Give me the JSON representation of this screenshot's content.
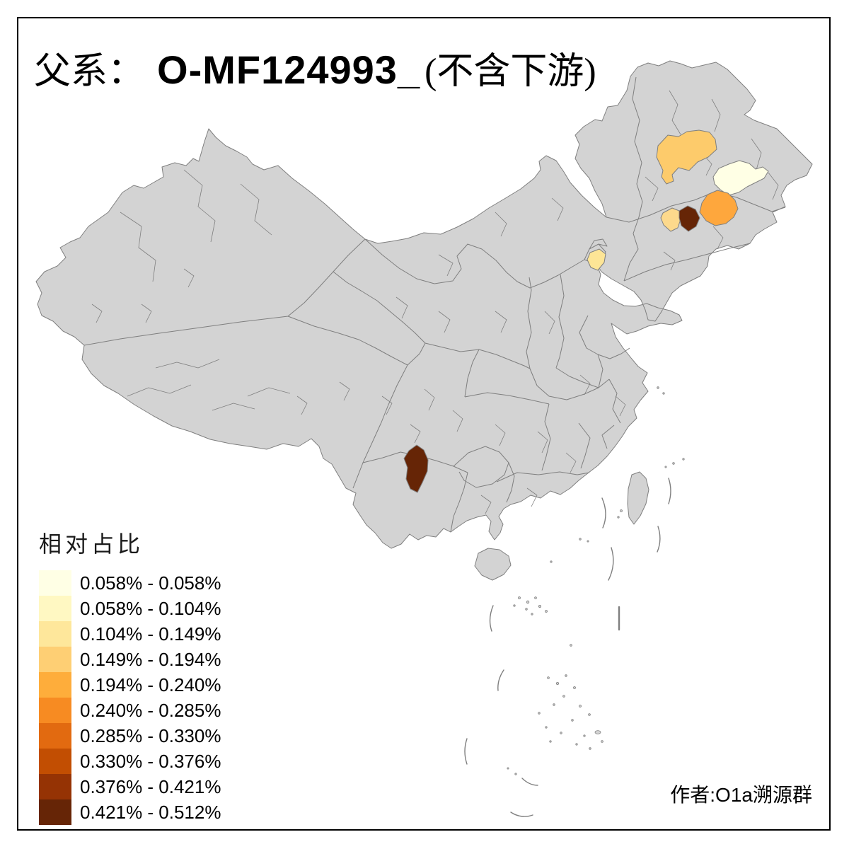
{
  "title": {
    "prefix": "父系：",
    "code": "O-MF124993_",
    "suffix": "(不含下游)"
  },
  "legend": {
    "title": "相对占比",
    "items": [
      {
        "color": "#FFFFE5",
        "label": "0.058% - 0.058%"
      },
      {
        "color": "#FFF8C2",
        "label": "0.058% - 0.104%"
      },
      {
        "color": "#FEE79B",
        "label": "0.104% - 0.149%"
      },
      {
        "color": "#FECF74",
        "label": "0.149% - 0.194%"
      },
      {
        "color": "#FEAD3B",
        "label": "0.194% - 0.240%"
      },
      {
        "color": "#F78B22",
        "label": "0.240% - 0.285%"
      },
      {
        "color": "#E26A10",
        "label": "0.285% - 0.330%"
      },
      {
        "color": "#C24E02",
        "label": "0.330% - 0.376%"
      },
      {
        "color": "#953304",
        "label": "0.376% - 0.421%"
      },
      {
        "color": "#662506",
        "label": "0.421% - 0.512%"
      }
    ]
  },
  "attribution": "作者:O1a溯源群",
  "map": {
    "colors": {
      "land": "#D3D3D3",
      "border": "#7F7F7F",
      "background": "#FFFFFF",
      "frame": "#000000"
    },
    "regions": [
      {
        "id": "northeast-west-light",
        "color": "#FDCB6B"
      },
      {
        "id": "northeast-cream",
        "color": "#FFFFE5"
      },
      {
        "id": "northeast-orange",
        "color": "#FEA73D"
      },
      {
        "id": "northeast-small-light",
        "color": "#FDD98C"
      },
      {
        "id": "northeast-dark-brown",
        "color": "#662506"
      },
      {
        "id": "bohai-pale-yellow",
        "color": "#FDE596"
      },
      {
        "id": "southwest-dark-brown",
        "color": "#662506"
      }
    ]
  }
}
